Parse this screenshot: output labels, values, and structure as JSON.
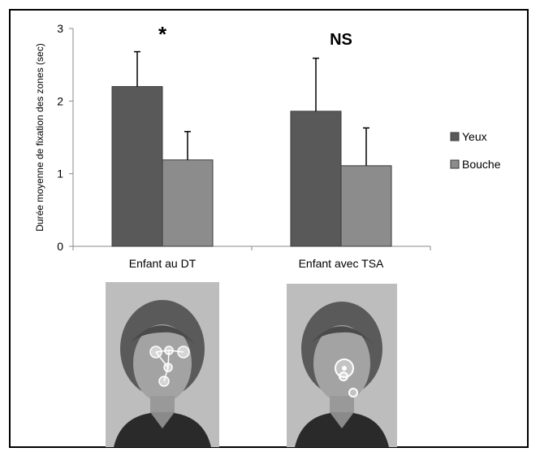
{
  "chart_data": {
    "type": "bar",
    "categories": [
      "Enfant au DT",
      "Enfant avec TSA"
    ],
    "series": [
      {
        "name": "Yeux",
        "values": [
          2.2,
          1.86
        ],
        "errors": [
          0.48,
          0.73
        ],
        "color": "#595959"
      },
      {
        "name": "Bouche",
        "values": [
          1.19,
          1.11
        ],
        "errors": [
          0.39,
          0.52
        ],
        "color": "#8c8c8c"
      }
    ],
    "annotations": [
      "*",
      "NS"
    ],
    "ylabel": "Durée moyenne de fixation des zones (sec)",
    "ylim": [
      0,
      3
    ],
    "yticks": [
      "0",
      "1",
      "2",
      "3"
    ],
    "grid": false,
    "legend_position": "right"
  },
  "photos": [
    {
      "caption_ref": "Enfant au DT",
      "fixation_pattern": "multiple fixations across eyes and mouth"
    },
    {
      "caption_ref": "Enfant avec TSA",
      "fixation_pattern": "fixation centered on nose and below mouth"
    }
  ],
  "colors": {
    "yeux": "#595959",
    "bouche": "#8c8c8c",
    "background": "#ffffff"
  }
}
